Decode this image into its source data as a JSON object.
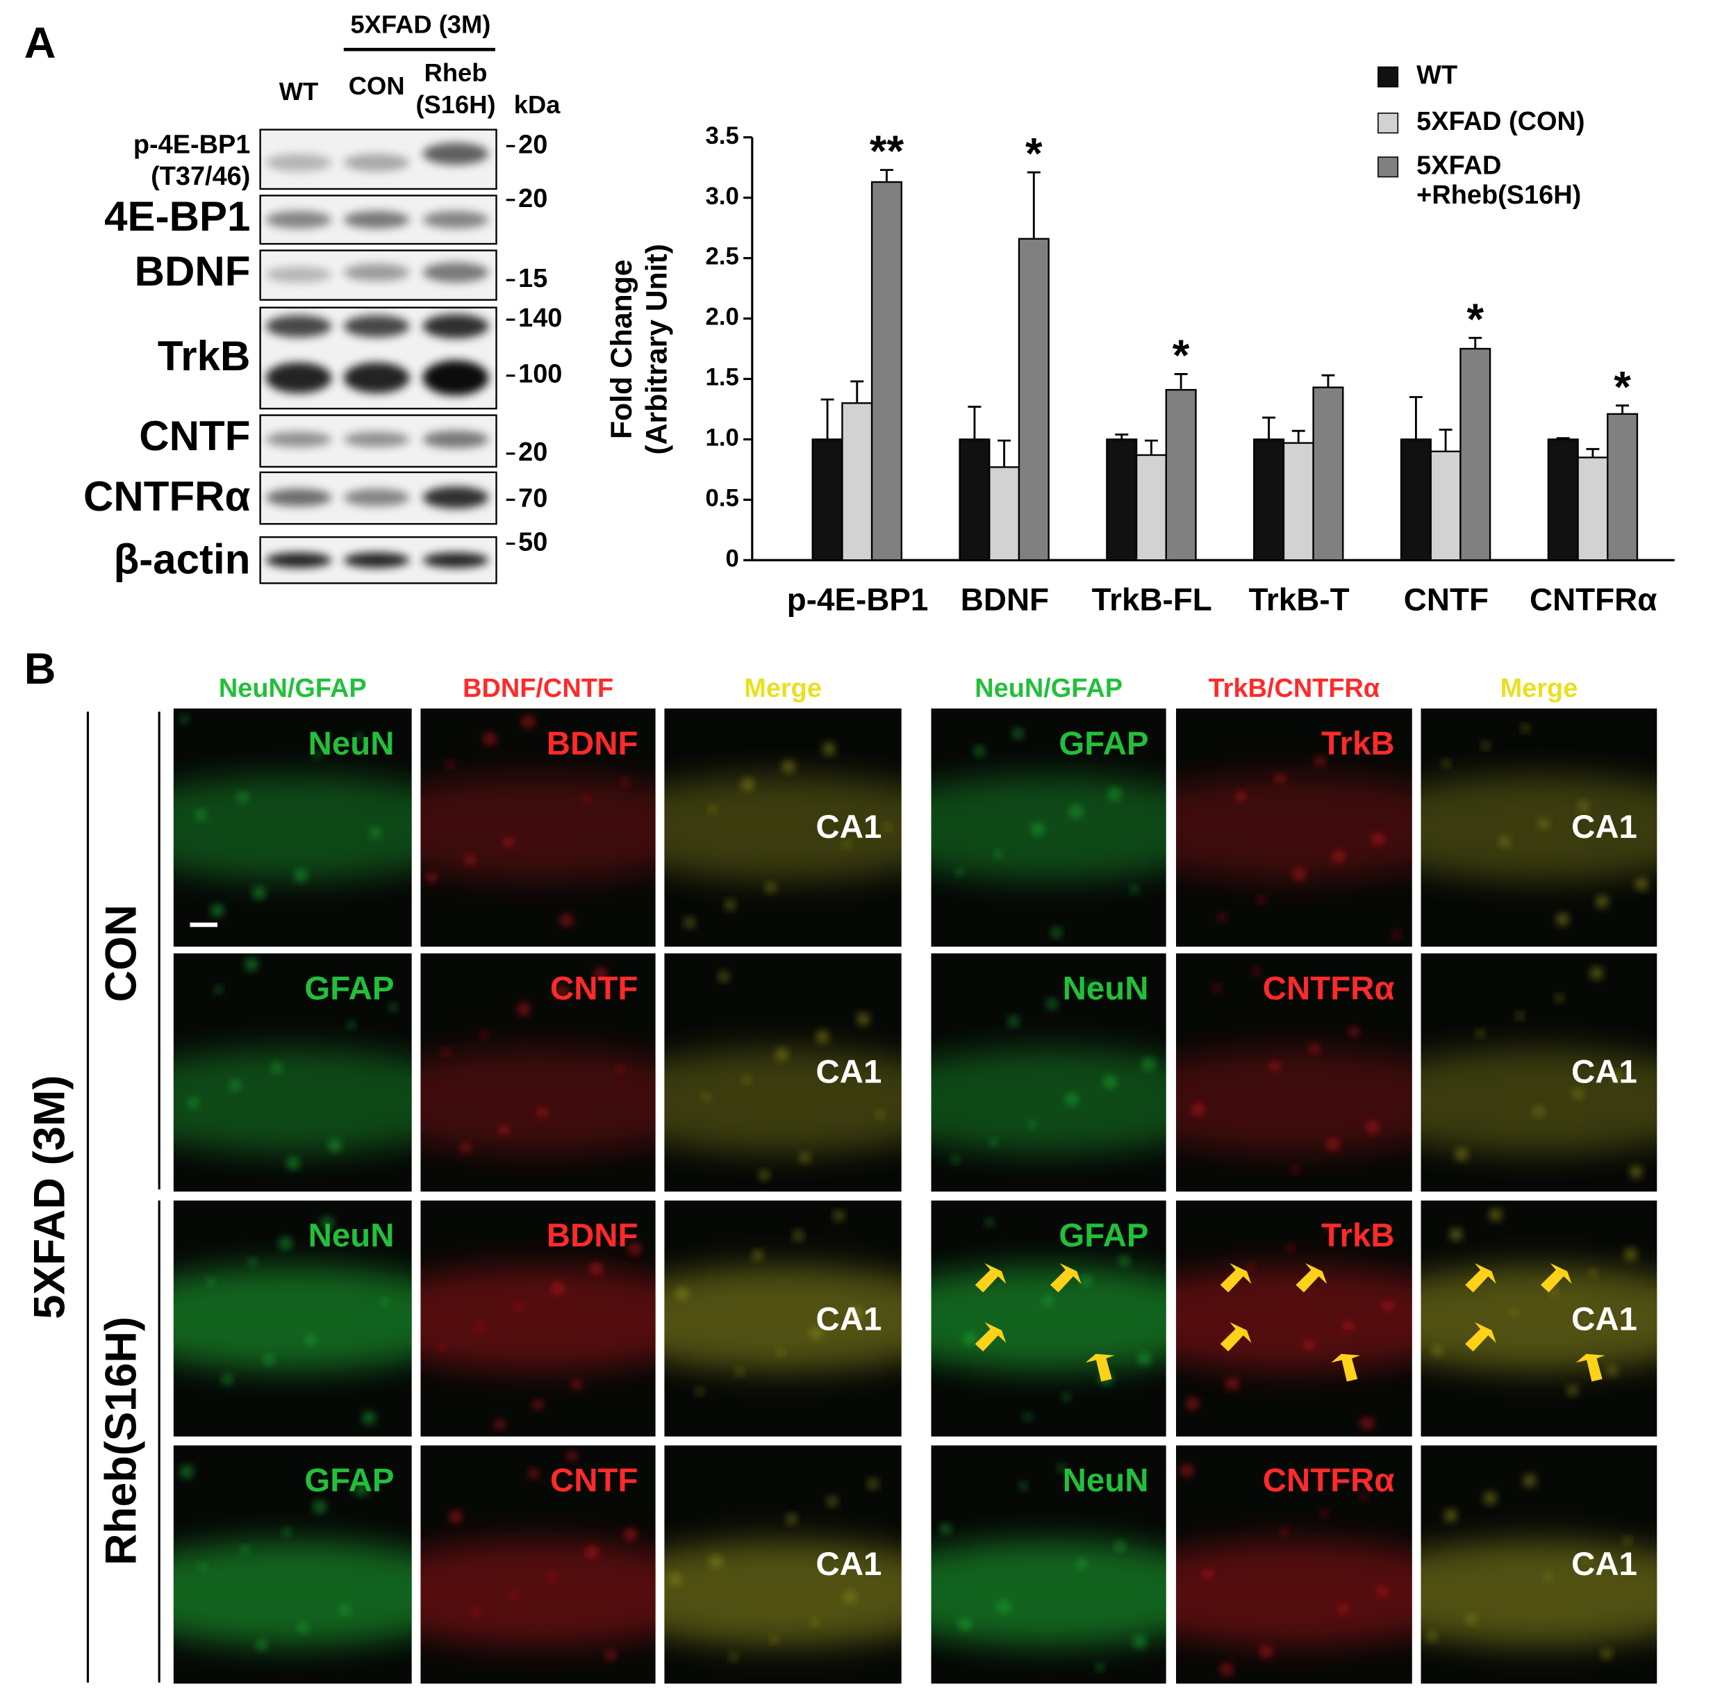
{
  "panel_a": {
    "label": "A",
    "group_label": "5XFAD (3M)",
    "lanes": [
      [
        "WT"
      ],
      [
        "CON"
      ],
      [
        "Rheb",
        "(S16H)"
      ]
    ],
    "unit_label": "kDa",
    "rows": [
      {
        "label": [
          "p-4E-BP1",
          "(T37/46)"
        ],
        "markers": [
          20
        ]
      },
      {
        "label": [
          "4E-BP1"
        ],
        "markers": [
          20
        ]
      },
      {
        "label": [
          "BDNF"
        ],
        "markers": [
          15
        ]
      },
      {
        "label": [
          "TrkB"
        ],
        "markers": [
          140,
          100
        ]
      },
      {
        "label": [
          "CNTF"
        ],
        "markers": [
          20
        ]
      },
      {
        "label": [
          "CNTFRα"
        ],
        "markers": [
          70
        ]
      },
      {
        "label": [
          "β-actin"
        ],
        "markers": [
          50
        ]
      }
    ]
  },
  "chart_data": {
    "type": "bar",
    "ylabel": [
      "Fold Change",
      "(Arbitrary Unit)"
    ],
    "categories": [
      "p-4E-BP1",
      "BDNF",
      "TrkB-FL",
      "TrkB-T",
      "CNTF",
      "CNTFRα"
    ],
    "series": [
      {
        "name": "WT",
        "color": "#111111",
        "values": [
          1.0,
          1.0,
          1.0,
          1.0,
          1.0,
          1.0
        ],
        "errors": [
          0.33,
          0.27,
          0.04,
          0.18,
          0.35,
          0.01
        ]
      },
      {
        "name": "5XFAD (CON)",
        "color": "#d2d2d2",
        "values": [
          1.3,
          0.77,
          0.87,
          0.97,
          0.9,
          0.85
        ],
        "errors": [
          0.18,
          0.22,
          0.12,
          0.1,
          0.18,
          0.07
        ]
      },
      {
        "name": "5XFAD\n+Rheb(S16H)",
        "color": "#808080",
        "values": [
          3.13,
          2.66,
          1.41,
          1.43,
          1.75,
          1.21
        ],
        "errors": [
          0.1,
          0.55,
          0.13,
          0.1,
          0.09,
          0.07
        ],
        "significance": [
          "**",
          "*",
          "*",
          null,
          "*",
          "*"
        ]
      }
    ],
    "ylim": [
      0,
      3.5
    ],
    "yticks": [
      0,
      0.5,
      {
        "value": 1,
        "label": "1.0"
      },
      1.5,
      {
        "value": 2,
        "label": "2.0"
      },
      2.5,
      {
        "value": 3,
        "label": "3.0"
      },
      3.5
    ],
    "legend": "top-right"
  },
  "panel_b": {
    "label": "B",
    "column_headers": [
      "NeuN/GFAP",
      "BDNF/CNTF",
      "Merge",
      "NeuN/GFAP",
      "TrkB/CNTFRα",
      "Merge"
    ],
    "group_label": "5XFAD (3M)",
    "row_groups": [
      "CON",
      "Rheb(S16H)"
    ],
    "tiles": [
      [
        "NeuN",
        "BDNF",
        "CA1",
        "GFAP",
        "TrkB",
        "CA1"
      ],
      [
        "GFAP",
        "CNTF",
        "CA1",
        "NeuN",
        "CNTFRα",
        "CA1"
      ],
      [
        "NeuN",
        "BDNF",
        "CA1",
        "GFAP",
        "TrkB",
        "CA1"
      ],
      [
        "GFAP",
        "CNTF",
        "CA1",
        "NeuN",
        "CNTFRα",
        "CA1"
      ]
    ]
  }
}
